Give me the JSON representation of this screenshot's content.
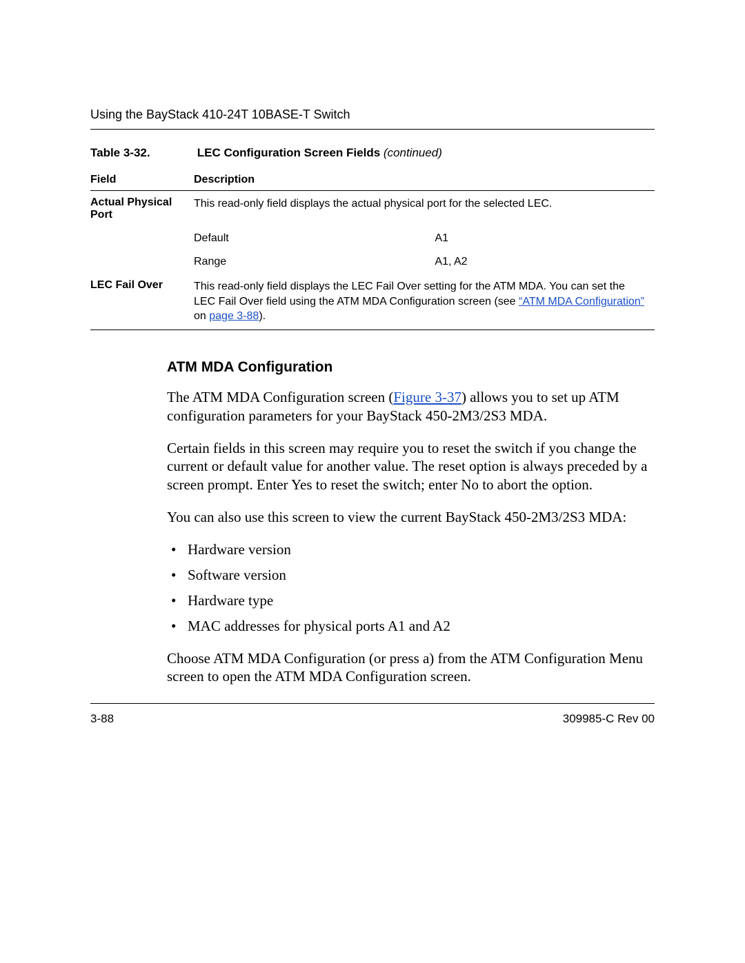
{
  "header": {
    "running": "Using the BayStack 410-24T 10BASE-T Switch"
  },
  "table": {
    "caption_number": "Table 3-32.",
    "caption_title": "LEC Configuration Screen Fields ",
    "caption_suffix": "(continued)",
    "columns": {
      "field": "Field",
      "description": "Description"
    },
    "rows": {
      "actual_physical_port": {
        "field": "Actual Physical Port",
        "desc": "This read-only field displays the actual physical port for the selected LEC.",
        "default_label": "Default",
        "default_value": "A1",
        "range_label": "Range",
        "range_value": "A1, A2"
      },
      "lec_fail_over": {
        "field": "LEC Fail Over",
        "desc_pre": "This read-only field displays the LEC Fail Over setting for the ATM MDA. You can set the LEC Fail Over field using the ATM MDA Configuration screen (see ",
        "link1": "“ATM MDA Configuration”",
        "desc_mid": " on ",
        "link2": "page 3-88",
        "desc_post": ")."
      }
    }
  },
  "section": {
    "heading": "ATM MDA Configuration",
    "p1_pre": "The ATM MDA Configuration screen (",
    "p1_link": "Figure 3-37",
    "p1_post": ") allows you to set up ATM configuration parameters for your BayStack 450-2M3/2S3 MDA.",
    "p2": "Certain fields in this screen may require you to reset the switch if you change the current or default value for another value. The reset option is always preceded by a screen prompt. Enter Yes to reset the switch; enter No to abort the option.",
    "p3": "You can also use this screen to view the current BayStack 450-2M3/2S3 MDA:",
    "bullets": [
      "Hardware version",
      "Software version",
      "Hardware type",
      "MAC addresses for physical ports A1 and A2"
    ],
    "p4": "Choose ATM MDA Configuration (or press a) from the ATM Configuration Menu screen to open the ATM MDA Configuration screen."
  },
  "footer": {
    "page": "3-88",
    "doc": "309985-C Rev 00"
  },
  "colors": {
    "link": "#1a4fc7",
    "text": "#000000",
    "rule": "#000000",
    "background": "#ffffff"
  }
}
